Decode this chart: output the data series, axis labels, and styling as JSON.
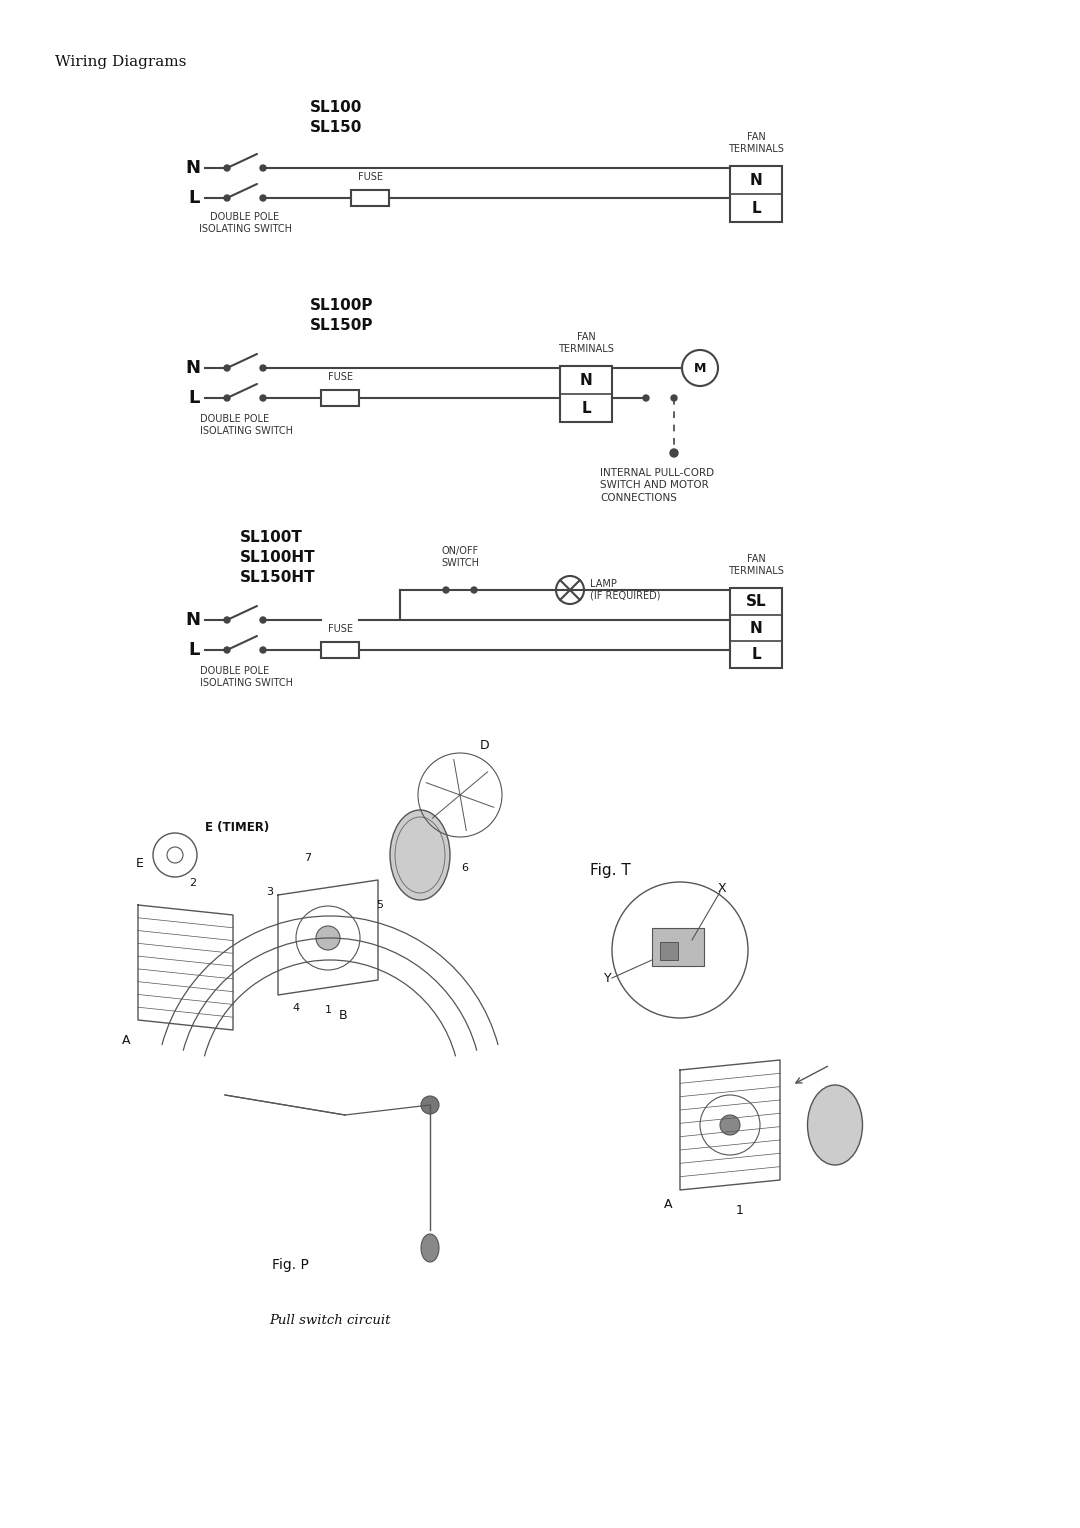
{
  "page_title": "Wiring Diagrams",
  "bg_color": "#ffffff",
  "line_color": "#555555",
  "text_color": "#333333",
  "pull_switch_text": "Pull switch circuit",
  "fig_T_text": "Fig. T",
  "fig_P_text": "Fig. P"
}
